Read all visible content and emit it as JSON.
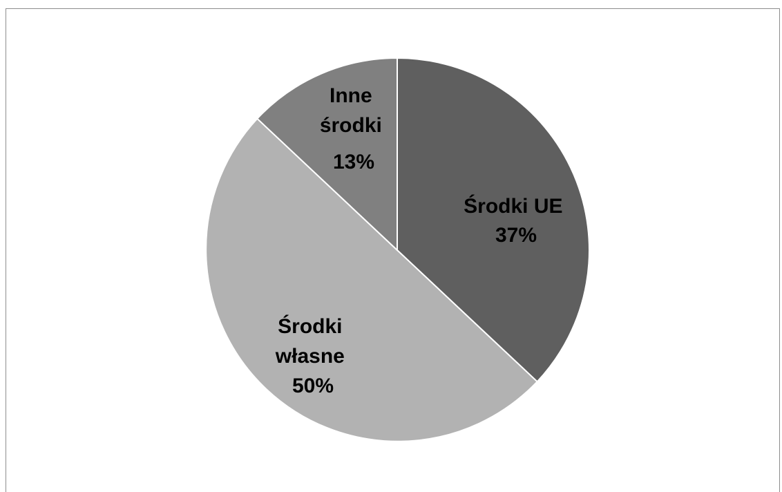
{
  "chart_data": {
    "type": "pie",
    "title": "",
    "slices": [
      {
        "label": "Środki UE",
        "value": 37,
        "percent_label": "37%",
        "color": "#5f5f5f"
      },
      {
        "label": "Środki własne",
        "value": 50,
        "percent_label": "50%",
        "color": "#b2b2b2"
      },
      {
        "label": "Inne środki",
        "value": 13,
        "percent_label": "13%",
        "color": "#808080"
      }
    ],
    "legend": "none",
    "labels": "inside"
  }
}
